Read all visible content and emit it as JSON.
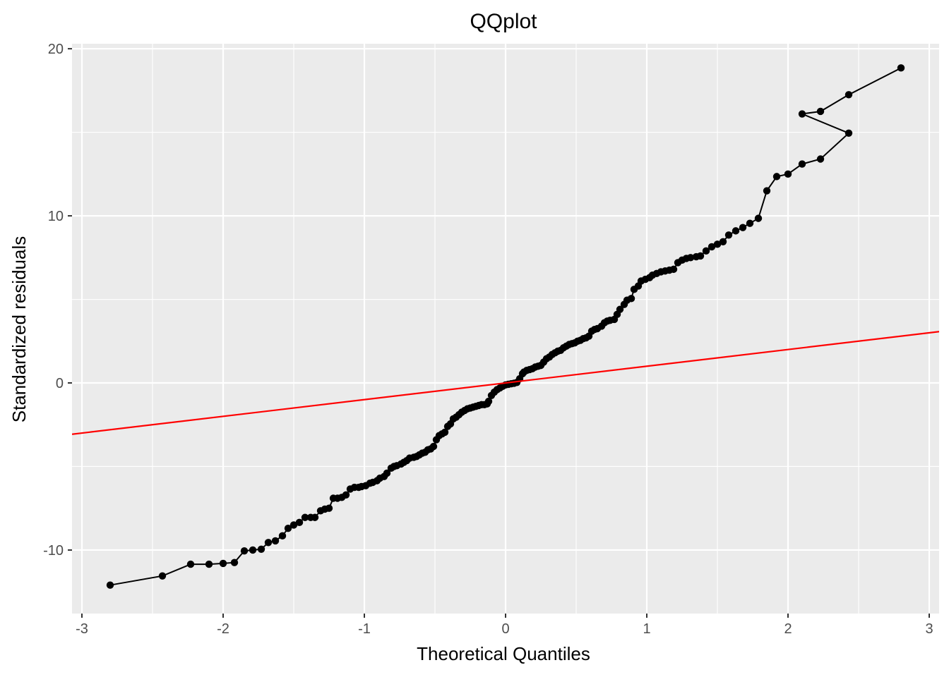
{
  "chart_data": {
    "type": "scatter",
    "title": "QQplot",
    "xlabel": "Theoretical Quantiles",
    "ylabel": "Standardized residuals",
    "xlim": [
      -3.07,
      3.07
    ],
    "ylim": [
      -13.8,
      20.3
    ],
    "x_ticks": [
      -3,
      -2,
      -1,
      0,
      1,
      2,
      3
    ],
    "x_tick_labels": [
      "-3",
      "-2",
      "-1",
      "0",
      "1",
      "2",
      "3"
    ],
    "y_ticks": [
      -10,
      0,
      10,
      20
    ],
    "y_tick_labels": [
      "-10",
      "0",
      "10",
      "20"
    ],
    "grid": true,
    "legend": "none",
    "colors": {
      "panel_background": "#EBEBEB",
      "grid": "#FFFFFF",
      "points": "#000000",
      "reference_line": "#FF0000"
    },
    "reference_line": {
      "intercept": 0,
      "slope": 1
    },
    "series": [
      {
        "points": [
          [
            -2.8,
            -12.1
          ],
          [
            -2.43,
            -11.55
          ],
          [
            -2.23,
            -10.85
          ],
          [
            -2.1,
            -10.85
          ],
          [
            -2.0,
            -10.8
          ],
          [
            -1.92,
            -10.75
          ],
          [
            -1.85,
            -10.05
          ],
          [
            -1.79,
            -10.0
          ],
          [
            -1.73,
            -9.95
          ],
          [
            -1.68,
            -9.55
          ],
          [
            -1.63,
            -9.45
          ],
          [
            -1.58,
            -9.15
          ],
          [
            -1.54,
            -8.7
          ],
          [
            -1.5,
            -8.5
          ],
          [
            -1.46,
            -8.35
          ],
          [
            -1.42,
            -8.05
          ],
          [
            -1.38,
            -8.05
          ],
          [
            -1.35,
            -8.05
          ],
          [
            -1.31,
            -7.65
          ],
          [
            -1.28,
            -7.55
          ],
          [
            -1.25,
            -7.5
          ],
          [
            -1.22,
            -6.9
          ],
          [
            -1.19,
            -6.9
          ],
          [
            -1.16,
            -6.85
          ],
          [
            -1.13,
            -6.7
          ],
          [
            -1.1,
            -6.35
          ],
          [
            -1.07,
            -6.25
          ],
          [
            -1.04,
            -6.25
          ],
          [
            -1.02,
            -6.2
          ],
          [
            -0.99,
            -6.15
          ],
          [
            -0.96,
            -6.0
          ],
          [
            -0.94,
            -5.95
          ],
          [
            -0.91,
            -5.85
          ],
          [
            -0.89,
            -5.7
          ],
          [
            -0.86,
            -5.6
          ],
          [
            -0.84,
            -5.4
          ],
          [
            -0.81,
            -5.1
          ],
          [
            -0.79,
            -5.0
          ],
          [
            -0.77,
            -4.95
          ],
          [
            -0.74,
            -4.85
          ],
          [
            -0.72,
            -4.75
          ],
          [
            -0.7,
            -4.65
          ],
          [
            -0.68,
            -4.5
          ],
          [
            -0.65,
            -4.45
          ],
          [
            -0.63,
            -4.4
          ],
          [
            -0.61,
            -4.3
          ],
          [
            -0.59,
            -4.2
          ],
          [
            -0.57,
            -4.15
          ],
          [
            -0.55,
            -4.0
          ],
          [
            -0.53,
            -3.95
          ],
          [
            -0.51,
            -3.8
          ],
          [
            -0.49,
            -3.4
          ],
          [
            -0.47,
            -3.15
          ],
          [
            -0.45,
            -3.05
          ],
          [
            -0.43,
            -2.95
          ],
          [
            -0.41,
            -2.6
          ],
          [
            -0.39,
            -2.45
          ],
          [
            -0.37,
            -2.15
          ],
          [
            -0.35,
            -2.05
          ],
          [
            -0.33,
            -1.9
          ],
          [
            -0.31,
            -1.75
          ],
          [
            -0.29,
            -1.65
          ],
          [
            -0.27,
            -1.55
          ],
          [
            -0.25,
            -1.5
          ],
          [
            -0.23,
            -1.45
          ],
          [
            -0.21,
            -1.4
          ],
          [
            -0.19,
            -1.35
          ],
          [
            -0.17,
            -1.3
          ],
          [
            -0.15,
            -1.3
          ],
          [
            -0.13,
            -1.25
          ],
          [
            -0.12,
            -1.1
          ],
          [
            -0.1,
            -0.75
          ],
          [
            -0.08,
            -0.55
          ],
          [
            -0.06,
            -0.4
          ],
          [
            -0.04,
            -0.3
          ],
          [
            -0.02,
            -0.2
          ],
          [
            0.0,
            -0.12
          ],
          [
            0.02,
            -0.08
          ],
          [
            0.04,
            -0.05
          ],
          [
            0.06,
            -0.02
          ],
          [
            0.08,
            0.03
          ],
          [
            0.1,
            0.25
          ],
          [
            0.12,
            0.55
          ],
          [
            0.13,
            0.65
          ],
          [
            0.15,
            0.75
          ],
          [
            0.17,
            0.8
          ],
          [
            0.19,
            0.85
          ],
          [
            0.21,
            0.95
          ],
          [
            0.23,
            1.0
          ],
          [
            0.25,
            1.05
          ],
          [
            0.27,
            1.25
          ],
          [
            0.29,
            1.45
          ],
          [
            0.31,
            1.55
          ],
          [
            0.33,
            1.7
          ],
          [
            0.35,
            1.8
          ],
          [
            0.37,
            1.9
          ],
          [
            0.39,
            1.95
          ],
          [
            0.41,
            2.1
          ],
          [
            0.43,
            2.2
          ],
          [
            0.45,
            2.3
          ],
          [
            0.47,
            2.35
          ],
          [
            0.49,
            2.4
          ],
          [
            0.51,
            2.5
          ],
          [
            0.53,
            2.55
          ],
          [
            0.55,
            2.65
          ],
          [
            0.57,
            2.7
          ],
          [
            0.59,
            2.8
          ],
          [
            0.61,
            3.1
          ],
          [
            0.63,
            3.2
          ],
          [
            0.65,
            3.25
          ],
          [
            0.68,
            3.4
          ],
          [
            0.7,
            3.6
          ],
          [
            0.72,
            3.7
          ],
          [
            0.74,
            3.75
          ],
          [
            0.77,
            3.8
          ],
          [
            0.79,
            4.1
          ],
          [
            0.81,
            4.4
          ],
          [
            0.84,
            4.7
          ],
          [
            0.86,
            4.95
          ],
          [
            0.89,
            5.05
          ],
          [
            0.91,
            5.6
          ],
          [
            0.94,
            5.8
          ],
          [
            0.96,
            6.1
          ],
          [
            0.99,
            6.2
          ],
          [
            1.02,
            6.3
          ],
          [
            1.04,
            6.45
          ],
          [
            1.07,
            6.55
          ],
          [
            1.1,
            6.65
          ],
          [
            1.13,
            6.7
          ],
          [
            1.16,
            6.75
          ],
          [
            1.19,
            6.8
          ],
          [
            1.22,
            7.2
          ],
          [
            1.25,
            7.35
          ],
          [
            1.28,
            7.45
          ],
          [
            1.31,
            7.5
          ],
          [
            1.35,
            7.55
          ],
          [
            1.38,
            7.6
          ],
          [
            1.42,
            7.9
          ],
          [
            1.46,
            8.15
          ],
          [
            1.5,
            8.3
          ],
          [
            1.54,
            8.45
          ],
          [
            1.58,
            8.85
          ],
          [
            1.63,
            9.1
          ],
          [
            1.68,
            9.3
          ],
          [
            1.73,
            9.55
          ],
          [
            1.79,
            9.85
          ],
          [
            1.85,
            11.5
          ],
          [
            1.92,
            12.35
          ],
          [
            2.0,
            12.5
          ],
          [
            2.1,
            13.1
          ],
          [
            2.23,
            13.4
          ],
          [
            2.43,
            14.95
          ],
          [
            2.1,
            16.1
          ],
          [
            2.23,
            16.25
          ],
          [
            2.43,
            17.25
          ],
          [
            2.8,
            18.85
          ]
        ]
      }
    ]
  }
}
